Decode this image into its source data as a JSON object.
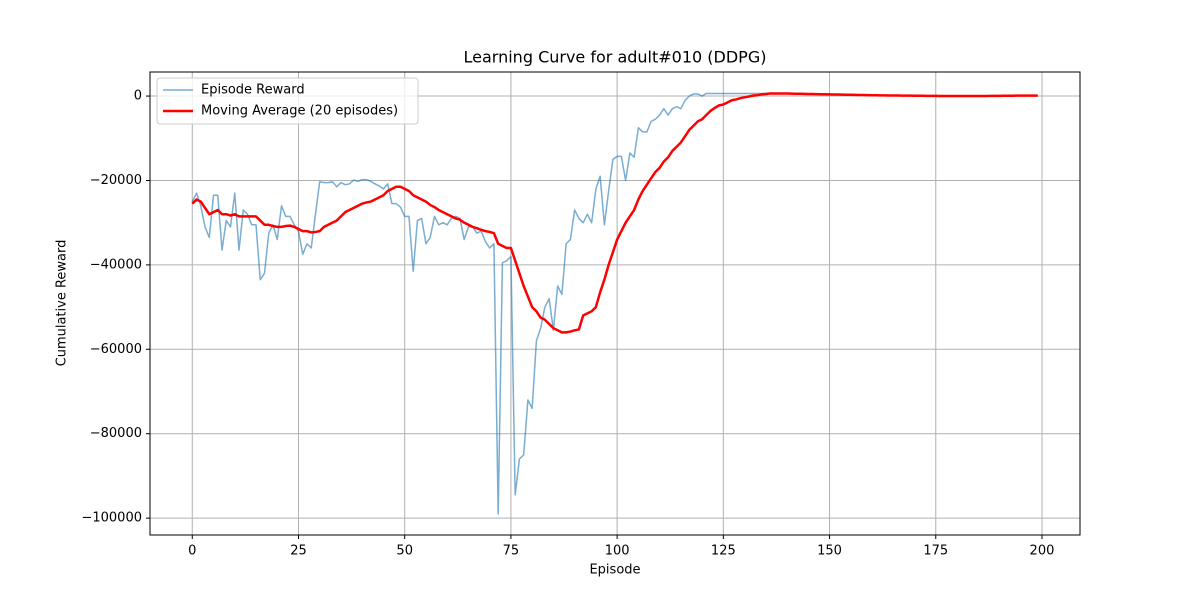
{
  "chart_data": {
    "type": "line",
    "title": "Learning Curve for adult#010 (DDPG)",
    "x_label": "Episode",
    "y_label": "Cumulative Reward",
    "x": [
      0,
      1,
      2,
      3,
      4,
      5,
      6,
      7,
      8,
      9,
      10,
      11,
      12,
      13,
      14,
      15,
      16,
      17,
      18,
      19,
      20,
      21,
      22,
      23,
      24,
      25,
      26,
      27,
      28,
      29,
      30,
      31,
      32,
      33,
      34,
      35,
      36,
      37,
      38,
      39,
      40,
      41,
      42,
      43,
      44,
      45,
      46,
      47,
      48,
      49,
      50,
      51,
      52,
      53,
      54,
      55,
      56,
      57,
      58,
      59,
      60,
      61,
      62,
      63,
      64,
      65,
      66,
      67,
      68,
      69,
      70,
      71,
      72,
      73,
      74,
      75,
      76,
      77,
      78,
      79,
      80,
      81,
      82,
      83,
      84,
      85,
      86,
      87,
      88,
      89,
      90,
      91,
      92,
      93,
      94,
      95,
      96,
      97,
      98,
      99,
      100,
      101,
      102,
      103,
      104,
      105,
      106,
      107,
      108,
      109,
      110,
      111,
      112,
      113,
      114,
      115,
      116,
      117,
      118,
      119,
      120,
      121,
      122,
      123,
      124,
      125,
      126,
      127,
      128,
      129,
      130,
      131,
      132,
      133,
      134,
      135,
      136,
      137,
      138,
      139,
      140,
      141,
      142,
      143,
      144,
      145,
      146,
      147,
      148,
      149,
      150,
      151,
      152,
      153,
      154,
      155,
      156,
      157,
      158,
      159,
      160,
      161,
      162,
      163,
      164,
      165,
      166,
      167,
      168,
      169,
      170,
      171,
      172,
      173,
      174,
      175,
      176,
      177,
      178,
      179,
      180,
      181,
      182,
      183,
      184,
      185,
      186,
      187,
      188,
      189,
      190,
      191,
      192,
      193,
      194,
      195,
      196,
      197,
      198,
      199
    ],
    "series": [
      {
        "name": "Episode Reward",
        "color": "#1f77b4",
        "values": [
          -25000,
          -23000,
          -26000,
          -31000,
          -33500,
          -23500,
          -23500,
          -36500,
          -29500,
          -31000,
          -23000,
          -36500,
          -27000,
          -28000,
          -30500,
          -30500,
          -43500,
          -42000,
          -32500,
          -30500,
          -34000,
          -26000,
          -28500,
          -28500,
          -30500,
          -32000,
          -37500,
          -35000,
          -36000,
          -28000,
          -20300,
          -20500,
          -20500,
          -20300,
          -21500,
          -20500,
          -21000,
          -20800,
          -19900,
          -20200,
          -19800,
          -19800,
          -20200,
          -20800,
          -21300,
          -22000,
          -20800,
          -25500,
          -25500,
          -26300,
          -28500,
          -28500,
          -41500,
          -29500,
          -29000,
          -35000,
          -33500,
          -28500,
          -30500,
          -30000,
          -30500,
          -29000,
          -28500,
          -29000,
          -34000,
          -31000,
          -31000,
          -32500,
          -32000,
          -34500,
          -36000,
          -35000,
          -99000,
          -39500,
          -39000,
          -38000,
          -94500,
          -86000,
          -85000,
          -72000,
          -74000,
          -58000,
          -55000,
          -50000,
          -48000,
          -55500,
          -45000,
          -47000,
          -35000,
          -34000,
          -27000,
          -29000,
          -30000,
          -28000,
          -30000,
          -22000,
          -19000,
          -30500,
          -22500,
          -15000,
          -14300,
          -14300,
          -20000,
          -13500,
          -14500,
          -7500,
          -8500,
          -8500,
          -6000,
          -5500,
          -4500,
          -3000,
          -4500,
          -3000,
          -2500,
          -3000,
          -1000,
          0,
          500,
          500,
          0,
          600,
          600,
          600,
          600,
          600,
          600,
          600,
          600,
          600,
          600,
          600,
          600,
          600,
          600,
          600,
          600,
          600,
          600,
          600,
          600,
          580,
          560,
          540,
          520,
          500,
          480,
          460,
          440,
          420,
          400,
          380,
          360,
          340,
          320,
          300,
          280,
          260,
          240,
          220,
          200,
          180,
          160,
          150,
          140,
          130,
          120,
          110,
          100,
          90,
          80,
          70,
          60,
          50,
          40,
          30,
          25,
          20,
          15,
          10,
          5,
          0,
          0,
          0,
          0,
          0,
          10,
          20,
          30,
          40,
          50,
          60,
          70,
          80,
          90,
          100,
          100,
          100,
          100,
          100
        ]
      },
      {
        "name": "Moving Average (20 episodes)",
        "color": "#ff0000",
        "values": [
          -25500,
          -24500,
          -25000,
          -26500,
          -28000,
          -27500,
          -27000,
          -28000,
          -28000,
          -28300,
          -28000,
          -28500,
          -28500,
          -28500,
          -28500,
          -28500,
          -29500,
          -30500,
          -30500,
          -30800,
          -31000,
          -31000,
          -30800,
          -30700,
          -31000,
          -31500,
          -32000,
          -32000,
          -32300,
          -32200,
          -32000,
          -31000,
          -30500,
          -30000,
          -29500,
          -28500,
          -27500,
          -27000,
          -26500,
          -26000,
          -25500,
          -25200,
          -25000,
          -24500,
          -24000,
          -23500,
          -22500,
          -22000,
          -21500,
          -21500,
          -22000,
          -22500,
          -23500,
          -24000,
          -24500,
          -25000,
          -25800,
          -26300,
          -27000,
          -27500,
          -28000,
          -28500,
          -29000,
          -29300,
          -30000,
          -30500,
          -31000,
          -31300,
          -31700,
          -32000,
          -32200,
          -32500,
          -35000,
          -35500,
          -36000,
          -36000,
          -39000,
          -42000,
          -45000,
          -47500,
          -50000,
          -51000,
          -52500,
          -53000,
          -54000,
          -55000,
          -55500,
          -56000,
          -56000,
          -55800,
          -55500,
          -55300,
          -52000,
          -51500,
          -51000,
          -50000,
          -46500,
          -43500,
          -40000,
          -37000,
          -34000,
          -32000,
          -30000,
          -28500,
          -27000,
          -24500,
          -22500,
          -21000,
          -19500,
          -18000,
          -17000,
          -15500,
          -14500,
          -13000,
          -12000,
          -11000,
          -9500,
          -8000,
          -7000,
          -6000,
          -5500,
          -4500,
          -3500,
          -2800,
          -2200,
          -2000,
          -1500,
          -1000,
          -800,
          -500,
          -300,
          -100,
          100,
          200,
          400,
          500,
          600,
          600,
          600,
          600,
          600,
          580,
          560,
          540,
          520,
          500,
          480,
          460,
          440,
          420,
          400,
          380,
          360,
          340,
          320,
          300,
          280,
          260,
          240,
          220,
          200,
          180,
          160,
          150,
          140,
          130,
          120,
          110,
          100,
          90,
          80,
          70,
          60,
          50,
          40,
          30,
          25,
          20,
          15,
          10,
          5,
          0,
          0,
          0,
          0,
          0,
          10,
          20,
          30,
          40,
          50,
          60,
          70,
          80,
          90,
          100,
          100,
          100,
          100,
          100
        ]
      }
    ],
    "xlim": [
      -9.95,
      208.95
    ],
    "ylim": [
      -104000,
      5700
    ],
    "xticks": [
      0,
      25,
      50,
      75,
      100,
      125,
      150,
      175,
      200
    ],
    "yticks": [
      {
        "value": -100000,
        "label": "−100000"
      },
      {
        "value": -80000,
        "label": "−80000"
      },
      {
        "value": -60000,
        "label": "−60000"
      },
      {
        "value": -40000,
        "label": "−40000"
      },
      {
        "value": -20000,
        "label": "−20000"
      },
      0
    ],
    "grid": true,
    "legend": "upper left"
  }
}
